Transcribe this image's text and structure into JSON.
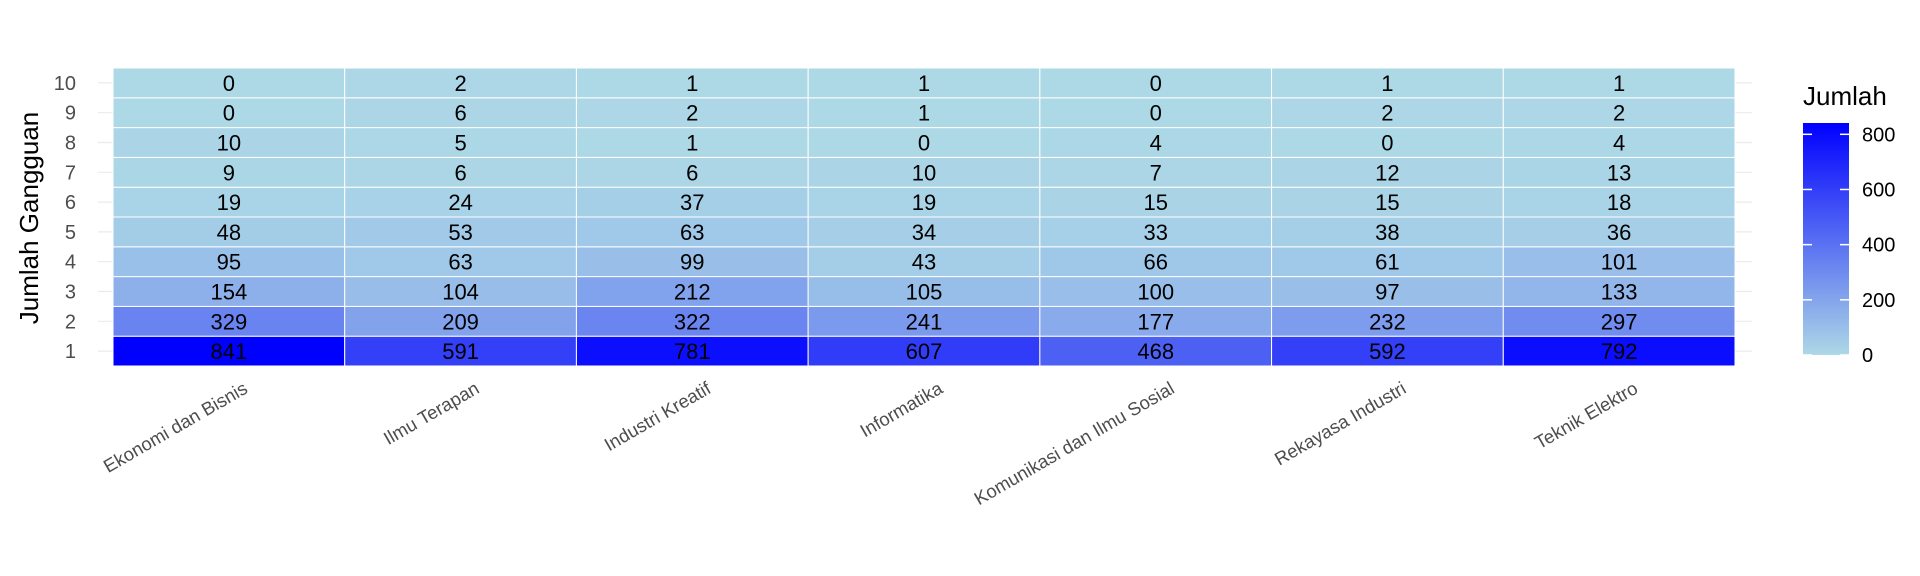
{
  "chart_data": {
    "type": "heatmap",
    "xlabel": "",
    "ylabel": "Jumlah Gangguan",
    "x_categories": [
      "Ekonomi dan Bisnis",
      "Ilmu Terapan",
      "Industri Kreatif",
      "Informatika",
      "Komunikasi dan Ilmu Sosial",
      "Rekayasa Industri",
      "Teknik Elektro"
    ],
    "y_categories": [
      "1",
      "2",
      "3",
      "4",
      "5",
      "6",
      "7",
      "8",
      "9",
      "10"
    ],
    "values": [
      [
        841,
        591,
        781,
        607,
        468,
        592,
        792
      ],
      [
        329,
        209,
        322,
        241,
        177,
        232,
        297
      ],
      [
        154,
        104,
        212,
        105,
        100,
        97,
        133
      ],
      [
        95,
        63,
        99,
        43,
        66,
        61,
        101
      ],
      [
        48,
        53,
        63,
        34,
        33,
        38,
        36
      ],
      [
        19,
        24,
        37,
        19,
        15,
        15,
        18
      ],
      [
        9,
        6,
        6,
        10,
        7,
        12,
        13
      ],
      [
        10,
        5,
        1,
        0,
        4,
        0,
        4
      ],
      [
        0,
        6,
        2,
        1,
        0,
        2,
        2
      ],
      [
        0,
        2,
        1,
        1,
        0,
        1,
        1
      ]
    ],
    "legend": {
      "title": "Jumlah",
      "ticks": [
        0,
        200,
        400,
        600,
        800
      ],
      "low_color": "#add8e6",
      "high_color": "#0000ff",
      "range": [
        0,
        841
      ],
      "placement": "right"
    },
    "grid": true
  }
}
